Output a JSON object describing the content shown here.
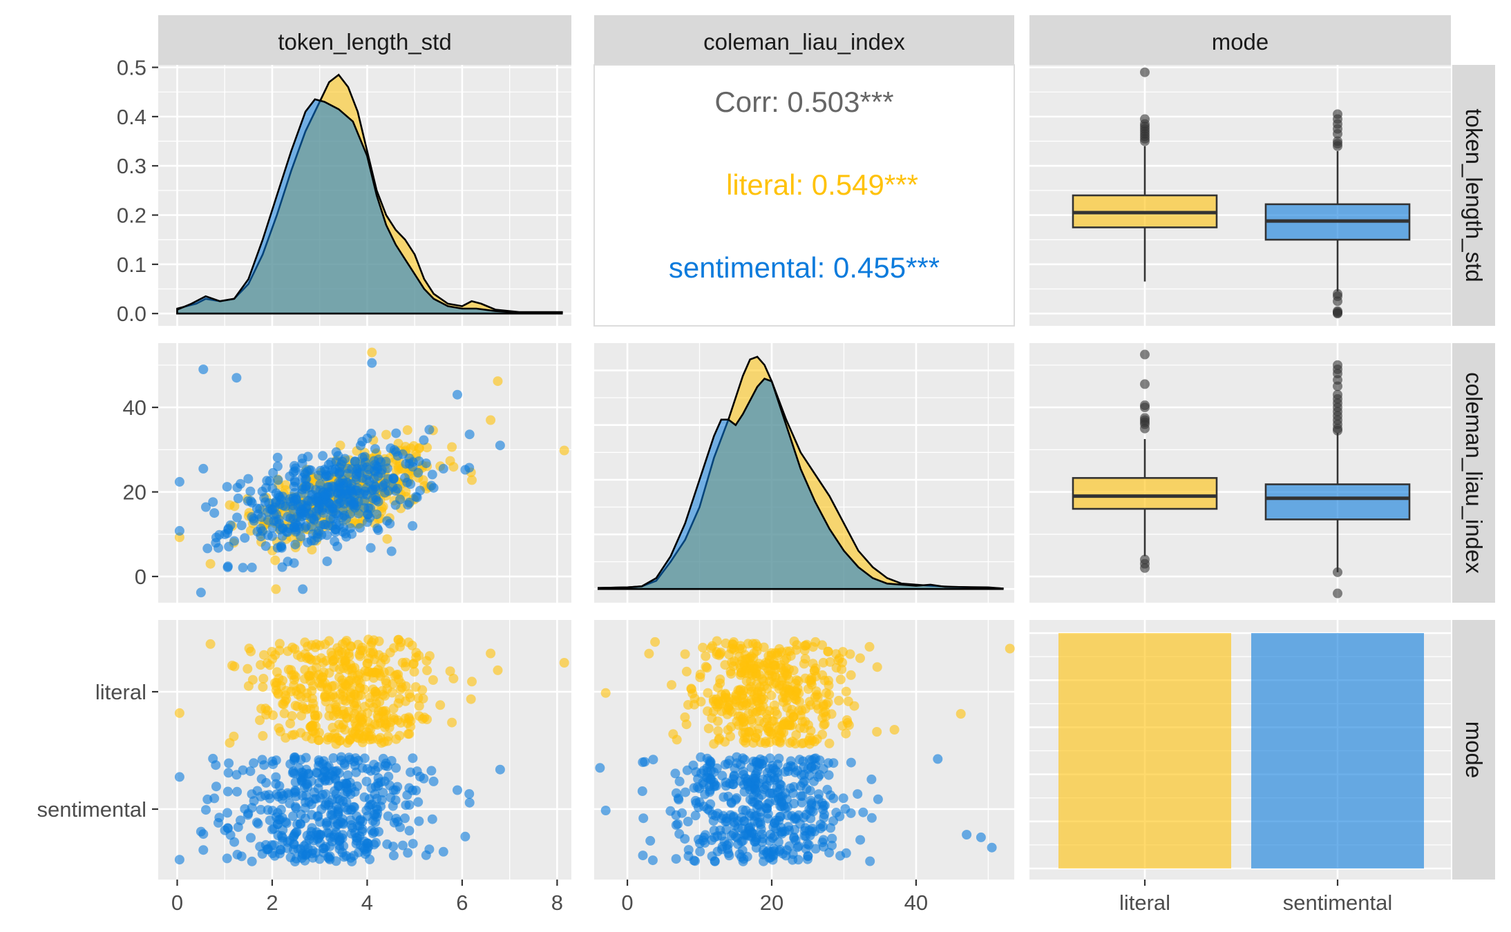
{
  "chart_data": {
    "type": "scatter",
    "title": "",
    "variables": [
      "token_length_std",
      "coleman_liau_index",
      "mode"
    ],
    "strips": {
      "columns": [
        "token_length_std",
        "coleman_liau_index",
        "mode"
      ],
      "rows": [
        "token_length_std",
        "coleman_liau_index",
        "mode"
      ]
    },
    "groups": [
      "literal",
      "sentimental"
    ],
    "colors": {
      "literal": "#FFC20A",
      "sentimental": "#0C7BDC",
      "overlap": "#7aa8a8",
      "corr_overall": "#666666"
    },
    "axes": {
      "token_length_std": {
        "range": [
          -0.4,
          8.3
        ],
        "ticks": [
          0,
          2,
          4,
          6,
          8
        ],
        "tick_labels": [
          "0",
          "2",
          "4",
          "6",
          "8"
        ]
      },
      "coleman_liau_index": {
        "range": [
          -4.6,
          53.6
        ],
        "ticks": [
          0,
          20,
          40
        ],
        "tick_labels": [
          "0",
          "20",
          "40"
        ]
      },
      "coleman_liau_index_y": {
        "range": [
          -6.2,
          55.2
        ],
        "ticks": [
          0,
          20,
          40
        ],
        "tick_labels": [
          "0",
          "20",
          "40"
        ]
      },
      "density_y": {
        "range": [
          -0.025,
          0.505
        ],
        "ticks": [
          0.0,
          0.1,
          0.2,
          0.3,
          0.4,
          0.5
        ],
        "tick_labels": [
          "0.0",
          "0.1",
          "0.2",
          "0.3",
          "0.4",
          "0.5"
        ]
      },
      "mode": {
        "levels": [
          "literal",
          "sentimental"
        ],
        "tick_labels": [
          "literal",
          "sentimental"
        ]
      }
    },
    "correlation": {
      "overall_label": "Corr: 0.503***",
      "literal_label": "literal: 0.549***",
      "sentimental_label": "sentimental: 0.455***"
    },
    "density_token_length_std": {
      "literal": [
        [
          0,
          0.01
        ],
        [
          0.4,
          0.02
        ],
        [
          0.6,
          0.03
        ],
        [
          0.9,
          0.025
        ],
        [
          1.2,
          0.03
        ],
        [
          1.5,
          0.06
        ],
        [
          1.8,
          0.12
        ],
        [
          2.1,
          0.2
        ],
        [
          2.4,
          0.29
        ],
        [
          2.7,
          0.37
        ],
        [
          3.0,
          0.43
        ],
        [
          3.2,
          0.47
        ],
        [
          3.4,
          0.485
        ],
        [
          3.6,
          0.46
        ],
        [
          3.8,
          0.41
        ],
        [
          4.0,
          0.33
        ],
        [
          4.2,
          0.25
        ],
        [
          4.4,
          0.2
        ],
        [
          4.6,
          0.17
        ],
        [
          4.8,
          0.15
        ],
        [
          5.0,
          0.12
        ],
        [
          5.2,
          0.07
        ],
        [
          5.4,
          0.04
        ],
        [
          5.7,
          0.02
        ],
        [
          6.0,
          0.015
        ],
        [
          6.2,
          0.025
        ],
        [
          6.4,
          0.02
        ],
        [
          6.7,
          0.008
        ],
        [
          7.2,
          0.003
        ],
        [
          8.1,
          0.003
        ]
      ],
      "sentimental": [
        [
          0,
          0.008
        ],
        [
          0.3,
          0.02
        ],
        [
          0.6,
          0.035
        ],
        [
          0.9,
          0.025
        ],
        [
          1.2,
          0.03
        ],
        [
          1.5,
          0.07
        ],
        [
          1.8,
          0.15
        ],
        [
          2.1,
          0.24
        ],
        [
          2.4,
          0.33
        ],
        [
          2.7,
          0.41
        ],
        [
          2.9,
          0.435
        ],
        [
          3.1,
          0.43
        ],
        [
          3.4,
          0.415
        ],
        [
          3.7,
          0.39
        ],
        [
          4.0,
          0.32
        ],
        [
          4.2,
          0.24
        ],
        [
          4.4,
          0.18
        ],
        [
          4.6,
          0.14
        ],
        [
          4.8,
          0.11
        ],
        [
          5.0,
          0.08
        ],
        [
          5.2,
          0.05
        ],
        [
          5.4,
          0.03
        ],
        [
          5.7,
          0.015
        ],
        [
          6.0,
          0.01
        ],
        [
          6.3,
          0.01
        ],
        [
          6.7,
          0.005
        ],
        [
          7.2,
          0.002
        ],
        [
          8.1,
          0.002
        ]
      ]
    },
    "density_coleman_liau_index": {
      "literal": [
        [
          -4,
          0.002
        ],
        [
          0,
          0.003
        ],
        [
          2,
          0.005
        ],
        [
          4,
          0.015
        ],
        [
          6,
          0.05
        ],
        [
          8,
          0.09
        ],
        [
          10,
          0.15
        ],
        [
          12,
          0.24
        ],
        [
          14,
          0.31
        ],
        [
          16,
          0.39
        ],
        [
          17,
          0.42
        ],
        [
          18,
          0.425
        ],
        [
          19,
          0.41
        ],
        [
          20,
          0.38
        ],
        [
          22,
          0.31
        ],
        [
          24,
          0.25
        ],
        [
          26,
          0.21
        ],
        [
          28,
          0.17
        ],
        [
          30,
          0.12
        ],
        [
          32,
          0.07
        ],
        [
          34,
          0.04
        ],
        [
          36,
          0.02
        ],
        [
          38,
          0.01
        ],
        [
          40,
          0.008
        ],
        [
          42,
          0.006
        ],
        [
          45,
          0.004
        ],
        [
          50,
          0.002
        ],
        [
          52,
          0.001
        ]
      ],
      "sentimental": [
        [
          -4,
          0.002
        ],
        [
          0,
          0.003
        ],
        [
          2,
          0.005
        ],
        [
          4,
          0.02
        ],
        [
          6,
          0.06
        ],
        [
          8,
          0.12
        ],
        [
          10,
          0.2
        ],
        [
          12,
          0.28
        ],
        [
          13,
          0.31
        ],
        [
          14,
          0.31
        ],
        [
          15,
          0.3
        ],
        [
          16,
          0.32
        ],
        [
          18,
          0.37
        ],
        [
          19,
          0.385
        ],
        [
          20,
          0.38
        ],
        [
          22,
          0.3
        ],
        [
          24,
          0.22
        ],
        [
          26,
          0.16
        ],
        [
          28,
          0.11
        ],
        [
          30,
          0.07
        ],
        [
          32,
          0.04
        ],
        [
          34,
          0.02
        ],
        [
          36,
          0.01
        ],
        [
          40,
          0.006
        ],
        [
          42,
          0.008
        ],
        [
          44,
          0.004
        ],
        [
          50,
          0.003
        ],
        [
          52,
          0.001
        ]
      ]
    },
    "box_token_length_std": {
      "literal": {
        "lower_whisker": 0.065,
        "q1": 0.175,
        "median": 0.205,
        "q3": 0.24,
        "upper_whisker": 0.34,
        "outliers": [
          0.35,
          0.355,
          0.36,
          0.365,
          0.37,
          0.375,
          0.38,
          0.385,
          0.395,
          0.49
        ]
      },
      "sentimental": {
        "lower_whisker": 0.045,
        "q1": 0.15,
        "median": 0.188,
        "q3": 0.222,
        "upper_whisker": 0.33,
        "outliers": [
          0.0,
          0.001,
          0.003,
          0.005,
          0.025,
          0.035,
          0.04,
          0.34,
          0.345,
          0.35,
          0.365,
          0.375,
          0.385,
          0.395,
          0.405
        ]
      }
    },
    "box_coleman_liau_index": {
      "literal": {
        "lower_whisker": 4.8,
        "q1": 16.0,
        "median": 19.0,
        "q3": 23.3,
        "upper_whisker": 32.5,
        "outliers": [
          2.0,
          3.0,
          4.0,
          35.0,
          36.0,
          36.5,
          37.0,
          37.5,
          40.0,
          40.5,
          45.5,
          52.5
        ]
      },
      "sentimental": {
        "lower_whisker": 1.0,
        "q1": 13.5,
        "median": 18.5,
        "q3": 21.8,
        "upper_whisker": 34.0,
        "outliers": [
          -4.0,
          1.0,
          34.5,
          35.0,
          36.0,
          37.0,
          38.0,
          39.0,
          40.0,
          41.0,
          42.0,
          43.0,
          45.0,
          46.5,
          48.0,
          49.0,
          50.0
        ]
      }
    },
    "bar_mode": {
      "categories": [
        "literal",
        "sentimental"
      ],
      "values": [
        500,
        500
      ]
    }
  }
}
